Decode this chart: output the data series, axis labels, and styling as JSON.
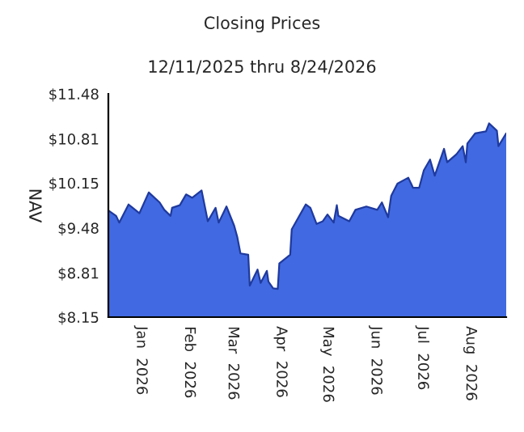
{
  "chart_data": {
    "type": "area",
    "title": "Closing Prices",
    "subtitle": "12/11/2025 thru 8/24/2026",
    "ylabel": "NAV",
    "x": [
      "2025-12-11",
      "2025-12-16",
      "2025-12-18",
      "2025-12-24",
      "2025-12-31",
      "2026-01-06",
      "2026-01-13",
      "2026-01-16",
      "2026-01-20",
      "2026-01-21",
      "2026-01-26",
      "2026-01-30",
      "2026-02-03",
      "2026-02-09",
      "2026-02-13",
      "2026-02-18",
      "2026-02-20",
      "2026-02-25",
      "2026-03-02",
      "2026-03-04",
      "2026-03-06",
      "2026-03-11",
      "2026-03-12",
      "2026-03-17",
      "2026-03-19",
      "2026-03-23",
      "2026-03-24",
      "2026-03-27",
      "2026-03-30",
      "2026-03-31",
      "2026-04-07",
      "2026-04-08",
      "2026-04-17",
      "2026-04-20",
      "2026-04-24",
      "2026-04-28",
      "2026-05-01",
      "2026-05-05",
      "2026-05-07",
      "2026-05-08",
      "2026-05-15",
      "2026-05-19",
      "2026-05-26",
      "2026-06-02",
      "2026-06-05",
      "2026-06-09",
      "2026-06-11",
      "2026-06-15",
      "2026-06-22",
      "2026-06-25",
      "2026-06-29",
      "2026-07-02",
      "2026-07-06",
      "2026-07-09",
      "2026-07-15",
      "2026-07-17",
      "2026-07-23",
      "2026-07-27",
      "2026-07-29",
      "2026-07-30",
      "2026-08-04",
      "2026-08-11",
      "2026-08-13",
      "2026-08-18",
      "2026-08-19",
      "2026-08-24"
    ],
    "series": [
      {
        "color": "#4169e1",
        "values": [
          9.74,
          9.66,
          9.56,
          9.83,
          9.7,
          10.01,
          9.86,
          9.75,
          9.66,
          9.78,
          9.82,
          9.98,
          9.93,
          10.04,
          9.58,
          9.78,
          9.56,
          9.8,
          9.51,
          9.34,
          9.1,
          9.08,
          8.62,
          8.86,
          8.66,
          8.84,
          8.68,
          8.58,
          8.57,
          8.95,
          9.08,
          9.46,
          9.83,
          9.78,
          9.54,
          9.58,
          9.68,
          9.56,
          9.82,
          9.66,
          9.58,
          9.75,
          9.8,
          9.75,
          9.86,
          9.64,
          9.96,
          10.14,
          10.23,
          10.08,
          10.08,
          10.34,
          10.5,
          10.26,
          10.66,
          10.46,
          10.58,
          10.7,
          10.46,
          10.74,
          10.89,
          10.92,
          11.04,
          10.93,
          10.7,
          10.89
        ]
      }
    ],
    "xlim": [
      "2025-12-11",
      "2026-08-24"
    ],
    "xticks": [
      {
        "value": "2026-01-01",
        "label": "Jan  2026"
      },
      {
        "value": "2026-02-01",
        "label": "Feb  2026"
      },
      {
        "value": "2026-03-01",
        "label": "Mar  2026"
      },
      {
        "value": "2026-04-01",
        "label": "Apr  2026"
      },
      {
        "value": "2026-05-01",
        "label": "May  2026"
      },
      {
        "value": "2026-06-01",
        "label": "Jun  2026"
      },
      {
        "value": "2026-07-01",
        "label": "Jul  2026"
      },
      {
        "value": "2026-08-01",
        "label": "Aug  2026"
      }
    ],
    "ylim": [
      8.15,
      11.48
    ],
    "yticks": [
      {
        "value": 8.15,
        "label": "$8.15"
      },
      {
        "value": 8.81,
        "label": "$8.81"
      },
      {
        "value": 9.48,
        "label": "$9.48"
      },
      {
        "value": 10.15,
        "label": "$10.15"
      },
      {
        "value": 10.81,
        "label": "$10.81"
      },
      {
        "value": 11.48,
        "label": "$11.48"
      }
    ],
    "grid": false,
    "legend": false
  }
}
